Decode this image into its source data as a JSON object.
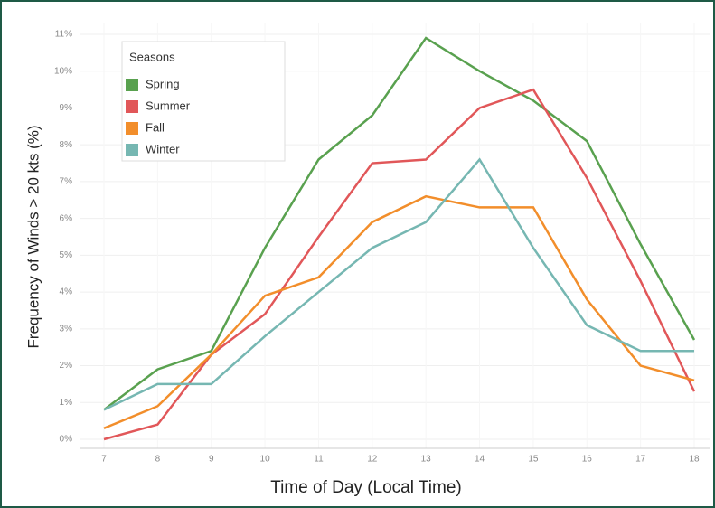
{
  "chart_data": {
    "type": "line",
    "x_label": "Time of Day (Local Time)",
    "y_label": "Frequency of Winds > 20 kts (%)",
    "legend_title": "Seasons",
    "legend": "upper-left",
    "grid": true,
    "x": [
      7,
      8,
      9,
      10,
      11,
      12,
      13,
      14,
      15,
      16,
      17,
      18
    ],
    "xlim": [
      7,
      18
    ],
    "xticks": [
      7,
      8,
      9,
      10,
      11,
      12,
      13,
      14,
      15,
      16,
      17,
      18
    ],
    "ylim": [
      0,
      11
    ],
    "yticks": [
      {
        "value": 0,
        "label": "0%"
      },
      {
        "value": 1,
        "label": "1%"
      },
      {
        "value": 2,
        "label": "2%"
      },
      {
        "value": 3,
        "label": "3%"
      },
      {
        "value": 4,
        "label": "4%"
      },
      {
        "value": 5,
        "label": "5%"
      },
      {
        "value": 6,
        "label": "6%"
      },
      {
        "value": 7,
        "label": "7%"
      },
      {
        "value": 8,
        "label": "8%"
      },
      {
        "value": 9,
        "label": "9%"
      },
      {
        "value": 10,
        "label": "10%"
      },
      {
        "value": 11,
        "label": "11%"
      }
    ],
    "series": [
      {
        "name": "Spring",
        "color": "#59a14f",
        "values": [
          0.8,
          1.9,
          2.4,
          5.2,
          7.6,
          8.8,
          10.9,
          10.0,
          9.2,
          8.1,
          5.3,
          2.7
        ]
      },
      {
        "name": "Summer",
        "color": "#e15759",
        "values": [
          0,
          0.4,
          2.3,
          3.4,
          5.5,
          7.5,
          7.6,
          9.0,
          9.5,
          7.1,
          4.3,
          1.3
        ]
      },
      {
        "name": "Fall",
        "color": "#f28e2b",
        "values": [
          0.3,
          0.9,
          2.3,
          3.9,
          4.4,
          5.9,
          6.6,
          6.3,
          6.3,
          3.8,
          2.0,
          1.6
        ]
      },
      {
        "name": "Winter",
        "color": "#76b7b2",
        "values": [
          0.8,
          1.5,
          1.5,
          2.8,
          4.0,
          5.2,
          5.9,
          7.6,
          5.2,
          3.1,
          2.4,
          2.4
        ]
      }
    ]
  }
}
